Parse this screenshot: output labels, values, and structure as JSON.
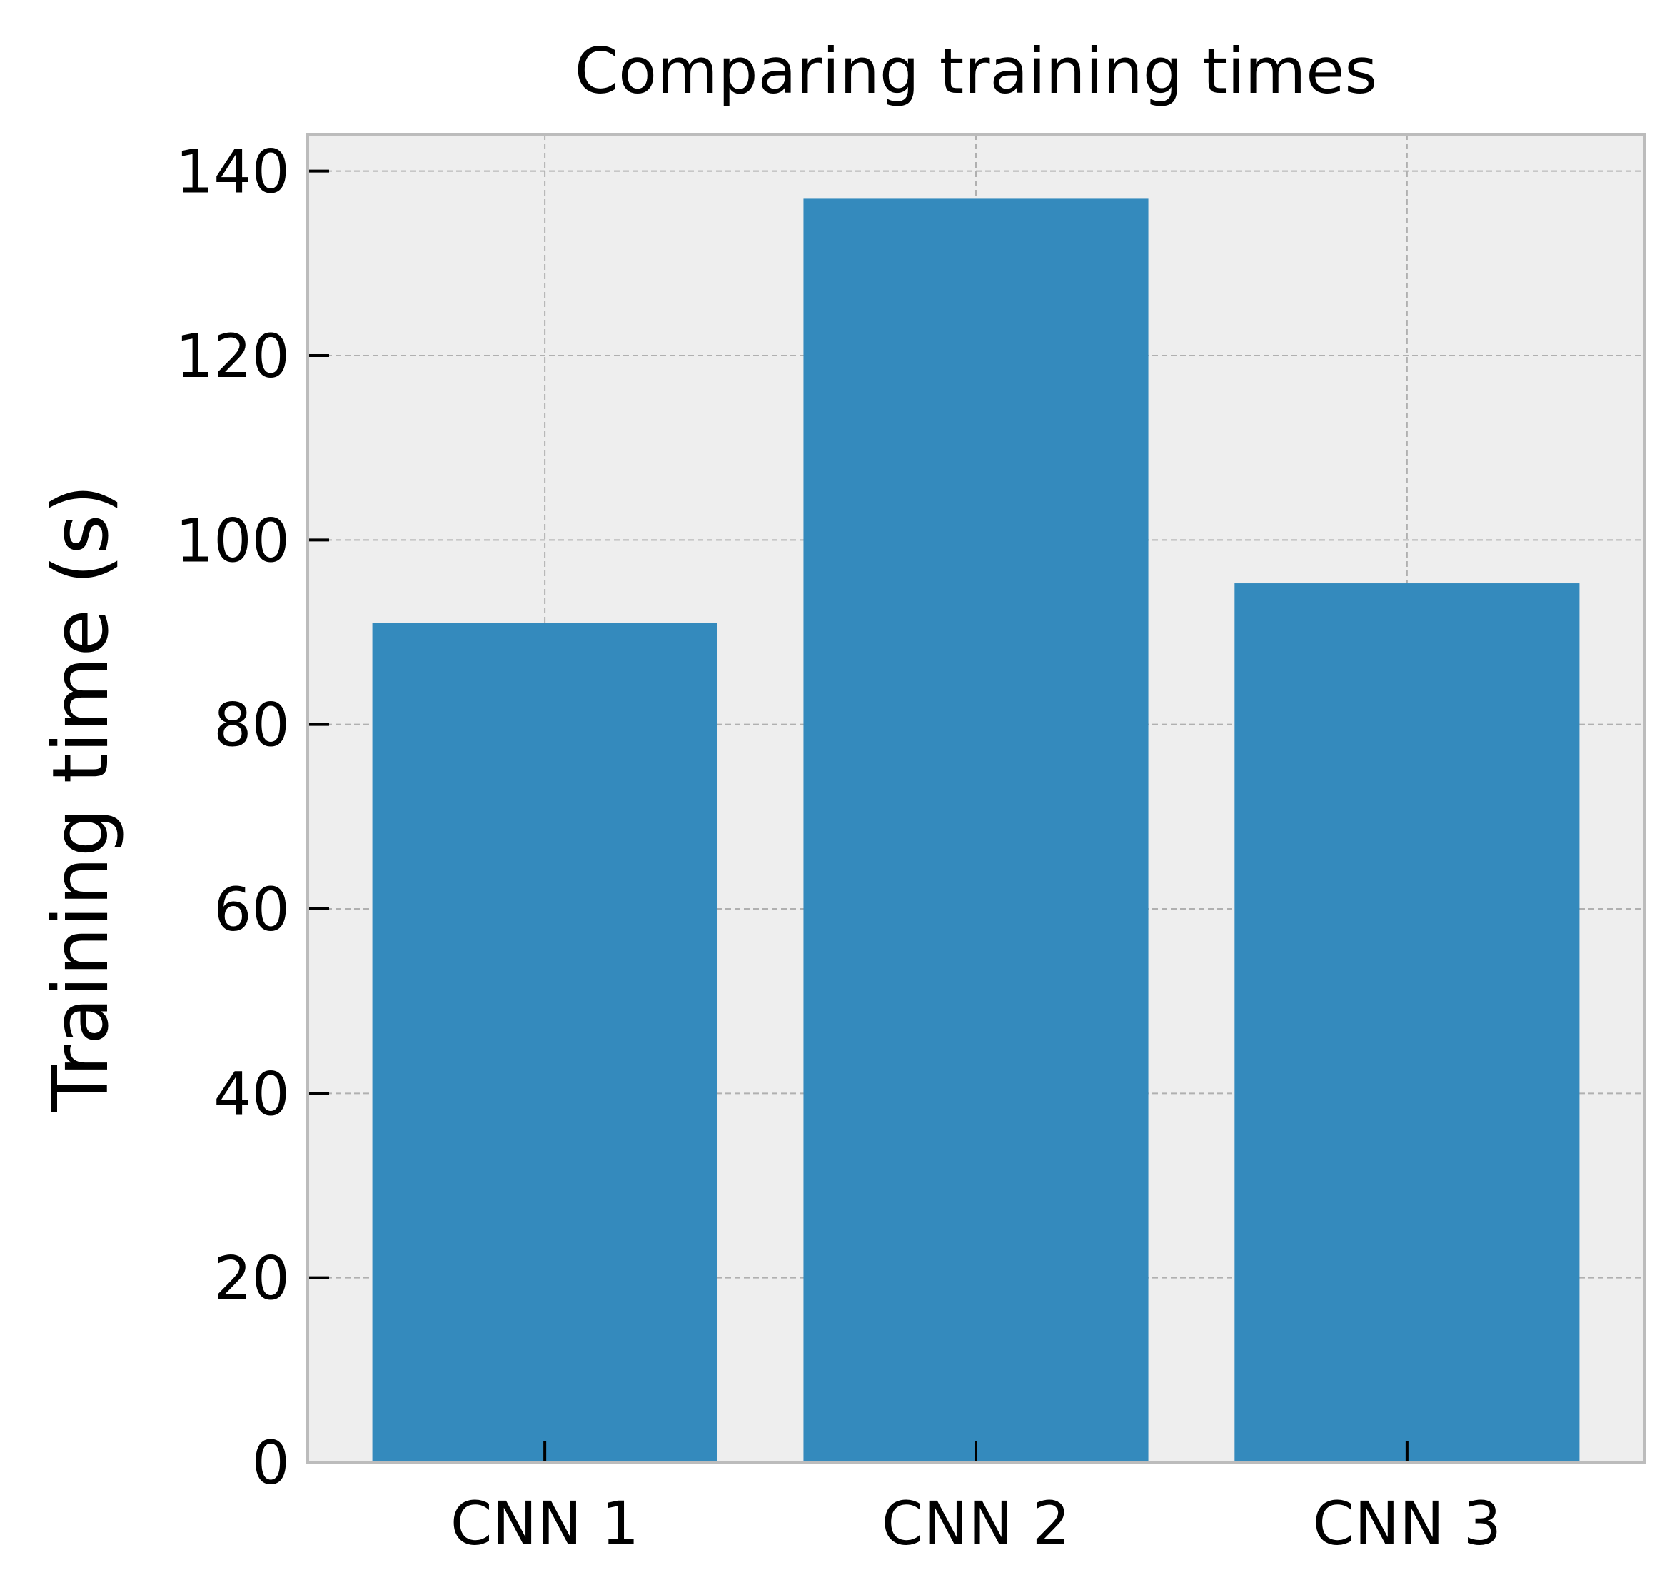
{
  "chart_data": {
    "type": "bar",
    "title": "Comparing training times",
    "xlabel": "",
    "ylabel": "Training time (s)",
    "categories": [
      "CNN 1",
      "CNN 2",
      "CNN 3"
    ],
    "values": [
      91,
      137,
      95.3
    ],
    "ylim": [
      0,
      144
    ],
    "yticks": [
      "0",
      "20",
      "40",
      "60",
      "80",
      "100",
      "120",
      "140"
    ],
    "grid": true,
    "colors": {
      "bar": "#348abd",
      "plot_background": "#eeeeee",
      "grid": "#b0b0b0",
      "frame": "#bcbcbc"
    }
  }
}
